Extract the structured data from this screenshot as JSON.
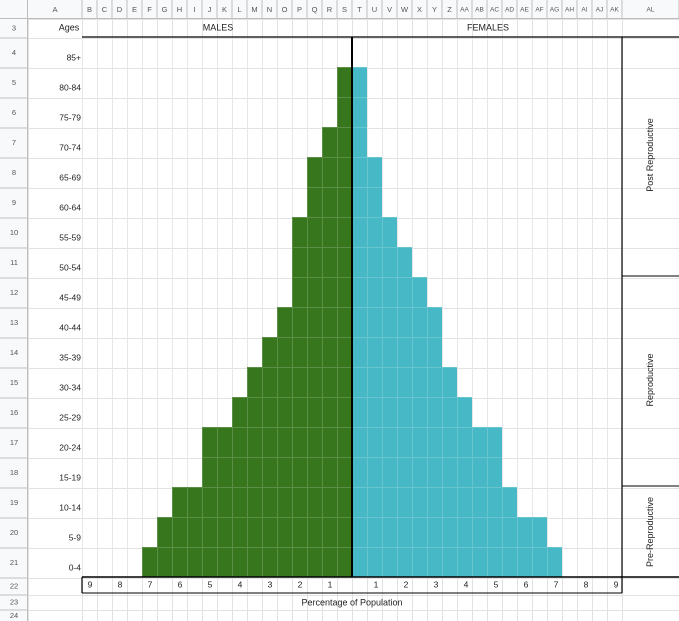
{
  "spreadsheet": {
    "column_headers": [
      "A",
      "B",
      "C",
      "D",
      "E",
      "F",
      "G",
      "H",
      "I",
      "J",
      "K",
      "L",
      "M",
      "N",
      "O",
      "P",
      "Q",
      "R",
      "S",
      "T",
      "U",
      "V",
      "W",
      "X",
      "Y",
      "Z",
      "AA",
      "AB",
      "AC",
      "AD",
      "AE",
      "AF",
      "AG",
      "AH",
      "AI",
      "AJ",
      "AK",
      "AL"
    ],
    "row_numbers": [
      "3",
      "4",
      "5",
      "6",
      "7",
      "8",
      "9",
      "10",
      "11",
      "12",
      "13",
      "14",
      "15",
      "16",
      "17",
      "18",
      "19",
      "20",
      "21",
      "22",
      "23",
      "24"
    ],
    "a_column_header_cell": "Ages",
    "males_header": "MALES",
    "females_header": "FEMALES",
    "percentage_ticks_left": [
      "9",
      "8",
      "7",
      "6",
      "5",
      "4",
      "3",
      "2",
      "1"
    ],
    "percentage_ticks_right": [
      "1",
      "2",
      "3",
      "4",
      "5",
      "6",
      "7",
      "8",
      "9"
    ],
    "footer_label": "Percentage of Population",
    "stage_labels": [
      "Post Reproductive",
      "Reproductive",
      "Pre-Reproductive"
    ]
  },
  "chart_data": {
    "type": "bar",
    "title": "",
    "orientation": "horizontal-population-pyramid",
    "categories": [
      "85+",
      "80-84",
      "75-79",
      "70-74",
      "65-69",
      "60-64",
      "55-59",
      "50-54",
      "45-49",
      "40-44",
      "35-39",
      "30-34",
      "25-29",
      "20-24",
      "15-19",
      "10-14",
      "5-9",
      "0-4"
    ],
    "series": [
      {
        "name": "MALES",
        "color": "#38761d",
        "values": [
          0,
          1,
          1,
          2,
          3,
          3,
          4,
          4,
          4,
          5,
          6,
          7,
          8,
          10,
          10,
          12,
          13,
          14
        ]
      },
      {
        "name": "FEMALES",
        "color": "#47b8c5",
        "values": [
          0,
          1,
          1,
          1,
          2,
          2,
          3,
          4,
          5,
          6,
          6,
          7,
          8,
          10,
          10,
          11,
          13,
          14
        ]
      }
    ],
    "note_units": "each unit = 0.5 percent of population",
    "xlabel": "Percentage of Population",
    "xlim": [
      -9,
      9
    ],
    "grid": true
  }
}
